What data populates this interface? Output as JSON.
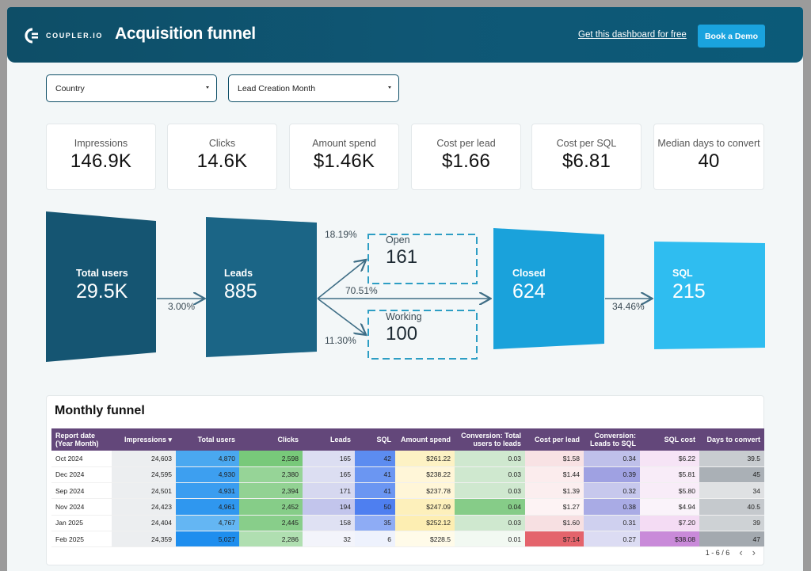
{
  "header": {
    "brand": "COUPLER.IO",
    "title": "Acquisition funnel",
    "link": "Get this dashboard for free",
    "button": "Book a Demo"
  },
  "filters": [
    {
      "label": "Country"
    },
    {
      "label": "Lead Creation Month"
    }
  ],
  "kpis": [
    {
      "label": "Impressions",
      "value": "146.9K"
    },
    {
      "label": "Clicks",
      "value": "14.6K"
    },
    {
      "label": "Amount spend",
      "value": "$1.46K"
    },
    {
      "label": "Cost per lead",
      "value": "$1.66"
    },
    {
      "label": "Cost per SQL",
      "value": "$6.81"
    },
    {
      "label": "Median days to convert",
      "value": "40"
    }
  ],
  "funnel": {
    "total_users": {
      "label": "Total users",
      "value": "29.5K"
    },
    "leads": {
      "label": "Leads",
      "value": "885"
    },
    "open": {
      "label": "Open",
      "value": "161"
    },
    "working": {
      "label": "Working",
      "value": "100"
    },
    "closed": {
      "label": "Closed",
      "value": "624"
    },
    "sql": {
      "label": "SQL",
      "value": "215"
    },
    "pct_users_leads": "3.00%",
    "pct_open": "18.19%",
    "pct_closed": "70.51%",
    "pct_working": "11.30%",
    "pct_sql": "34.46%"
  },
  "table": {
    "title": "Monthly funnel",
    "columns": [
      "Report date (Year Month)",
      "Impressions ▾",
      "Total users",
      "Clicks",
      "Leads",
      "SQL",
      "Amount spend",
      "Conversion: Total users to leads",
      "Cost per lead",
      "Conversion: Leads to SQL",
      "SQL cost",
      "Days to convert"
    ],
    "rows": [
      [
        "Oct 2024",
        "24,603",
        "4,870",
        "2,598",
        "165",
        "42",
        "$261.22",
        "0.03",
        "$1.58",
        "0.34",
        "$6.22",
        "39.5"
      ],
      [
        "Dec 2024",
        "24,595",
        "4,930",
        "2,380",
        "165",
        "41",
        "$238.22",
        "0.03",
        "$1.44",
        "0.39",
        "$5.81",
        "45"
      ],
      [
        "Sep 2024",
        "24,501",
        "4,931",
        "2,394",
        "171",
        "41",
        "$237.78",
        "0.03",
        "$1.39",
        "0.32",
        "$5.80",
        "34"
      ],
      [
        "Nov 2024",
        "24,423",
        "4,961",
        "2,452",
        "194",
        "50",
        "$247.09",
        "0.04",
        "$1.27",
        "0.38",
        "$4.94",
        "40.5"
      ],
      [
        "Jan 2025",
        "24,404",
        "4,767",
        "2,445",
        "158",
        "35",
        "$252.12",
        "0.03",
        "$1.60",
        "0.31",
        "$7.20",
        "39"
      ],
      [
        "Feb 2025",
        "24,359",
        "5,027",
        "2,286",
        "32",
        "6",
        "$228.5",
        "0.01",
        "$7.14",
        "0.27",
        "$38.08",
        "47"
      ]
    ],
    "cell_colors": [
      [
        "#fff",
        "#eceef0",
        "#4aa8f0",
        "#78c97a",
        "#dcdef2",
        "#5c8cf0",
        "#fdf2c4",
        "#cfe8cf",
        "#f8e2e4",
        "#bfc0ea",
        "#f6e4f6",
        "#c8ccd0"
      ],
      [
        "#fff",
        "#eceef0",
        "#3d9ff0",
        "#96d497",
        "#dcdef2",
        "#6b96f2",
        "#fff6d8",
        "#cfe8cf",
        "#fbeced",
        "#9fa1e2",
        "#f8ecf8",
        "#aab0b6"
      ],
      [
        "#fff",
        "#eceef0",
        "#3a9df0",
        "#92d293",
        "#d6d8f0",
        "#6b96f2",
        "#fff6d8",
        "#cfe8cf",
        "#fbeeef",
        "#c7c8ed",
        "#f8ecf8",
        "#dfe1e3"
      ],
      [
        "#fff",
        "#eceef0",
        "#2f97ef",
        "#86cd88",
        "#c2c5ec",
        "#4e7ff0",
        "#fdf0bb",
        "#86cc88",
        "#fdf3f4",
        "#a9abe5",
        "#faf3fa",
        "#c5c9cd"
      ],
      [
        "#fff",
        "#eceef0",
        "#64b6f3",
        "#88ce8a",
        "#dfe1f3",
        "#8eacf5",
        "#fdeeb2",
        "#cfe8cf",
        "#f7e0e2",
        "#cfd0ef",
        "#f4dcf4",
        "#ced2d5"
      ],
      [
        "#fff",
        "#eceef0",
        "#1e8eee",
        "#b0dfb1",
        "#f3f4fb",
        "#eef2fd",
        "#fffbe9",
        "#f2f9f2",
        "#e4646c",
        "#dcdcf3",
        "#c98ad9",
        "#a3a9af"
      ]
    ],
    "pager": "1 - 6 / 6"
  }
}
